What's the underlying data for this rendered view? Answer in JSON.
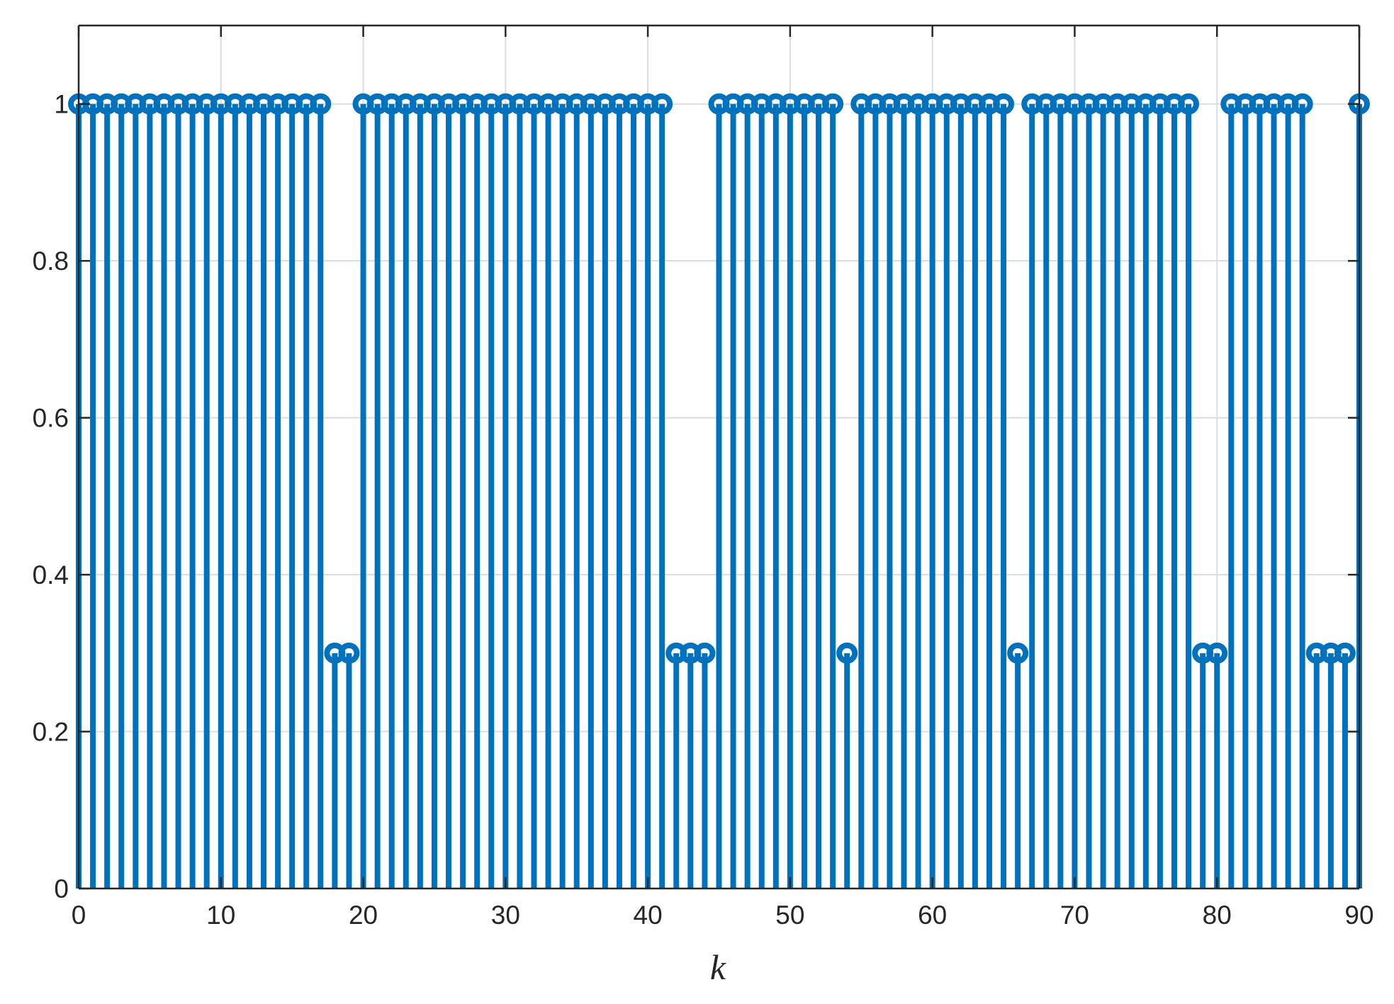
{
  "chart_data": {
    "type": "stem",
    "xlabel": "k",
    "ylabel": "",
    "title": "",
    "xlim": [
      0,
      90
    ],
    "ylim": [
      0,
      1.1
    ],
    "xticks": [
      0,
      10,
      20,
      30,
      40,
      50,
      60,
      70,
      80,
      90
    ],
    "yticks": [
      0,
      0.2,
      0.4,
      0.6,
      0.8,
      1
    ],
    "xtick_labels": [
      "0",
      "10",
      "20",
      "30",
      "40",
      "50",
      "60",
      "70",
      "80",
      "90"
    ],
    "ytick_labels": [
      "0",
      "0.2",
      "0.4",
      "0.6",
      "0.8",
      "1"
    ],
    "grid": true,
    "color": "#0072BD",
    "x": [
      0,
      1,
      2,
      3,
      4,
      5,
      6,
      7,
      8,
      9,
      10,
      11,
      12,
      13,
      14,
      15,
      16,
      17,
      18,
      19,
      20,
      21,
      22,
      23,
      24,
      25,
      26,
      27,
      28,
      29,
      30,
      31,
      32,
      33,
      34,
      35,
      36,
      37,
      38,
      39,
      40,
      41,
      42,
      43,
      44,
      45,
      46,
      47,
      48,
      49,
      50,
      51,
      52,
      53,
      54,
      55,
      56,
      57,
      58,
      59,
      60,
      61,
      62,
      63,
      64,
      65,
      66,
      67,
      68,
      69,
      70,
      71,
      72,
      73,
      74,
      75,
      76,
      77,
      78,
      79,
      80,
      81,
      82,
      83,
      84,
      85,
      86,
      87,
      88,
      89,
      90
    ],
    "y": [
      1,
      1,
      1,
      1,
      1,
      1,
      1,
      1,
      1,
      1,
      1,
      1,
      1,
      1,
      1,
      1,
      1,
      1,
      0.3,
      0.3,
      1,
      1,
      1,
      1,
      1,
      1,
      1,
      1,
      1,
      1,
      1,
      1,
      1,
      1,
      1,
      1,
      1,
      1,
      1,
      1,
      1,
      1,
      0.3,
      0.3,
      0.3,
      1,
      1,
      1,
      1,
      1,
      1,
      1,
      1,
      1,
      0.3,
      1,
      1,
      1,
      1,
      1,
      1,
      1,
      1,
      1,
      1,
      1,
      0.3,
      1,
      1,
      1,
      1,
      1,
      1,
      1,
      1,
      1,
      1,
      1,
      1,
      0.3,
      0.3,
      1,
      1,
      1,
      1,
      1,
      1,
      0.3,
      0.3,
      0.3,
      1
    ]
  }
}
